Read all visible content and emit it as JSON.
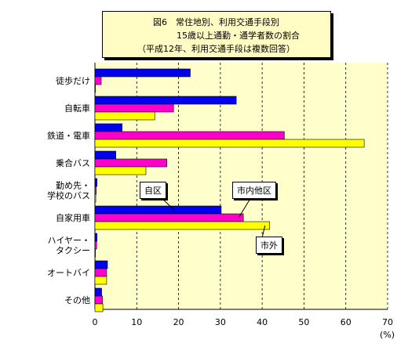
{
  "title_lines": [
    "図6　常住地別、利用交通手段別",
    "　　　　15歳以上通勤・通学者数の割合",
    "（平成12年、利用交通手段は複数回答）"
  ],
  "unit_label": "(%)",
  "callouts": {
    "jiku": "自区",
    "shinai": "市内他区",
    "shigai": "市外"
  },
  "colors": {
    "jiku": "#0000ee",
    "shinai": "#ff00cc",
    "shigai": "#ffff00",
    "plot_bg": "#ffffcc",
    "title_bg": "#fffcc4"
  },
  "chart_data": {
    "type": "bar",
    "orientation": "horizontal",
    "categories": [
      "徒歩だけ",
      "自転車",
      "鉄道・電車",
      "乗合バス",
      "勤め先・学校のバス",
      "自家用車",
      "ハイヤー・タクシー",
      "オートバイ",
      "その他"
    ],
    "category_labels": [
      [
        "徒歩だけ"
      ],
      [
        "自転車"
      ],
      [
        "鉄道・電車"
      ],
      [
        "乗合バス"
      ],
      [
        "勤め先・",
        "学校のバス"
      ],
      [
        "自家用車"
      ],
      [
        "ハイヤー・",
        "タクシー"
      ],
      [
        "オートバイ"
      ],
      [
        "その他"
      ]
    ],
    "series": [
      {
        "name": "自区",
        "values": [
          22.8,
          33.8,
          6.5,
          5.0,
          0.5,
          30.2,
          0.5,
          3.0,
          1.6
        ]
      },
      {
        "name": "市内他区",
        "values": [
          1.5,
          18.8,
          45.3,
          17.2,
          0.3,
          35.5,
          0.4,
          2.8,
          1.8
        ]
      },
      {
        "name": "市外",
        "values": [
          0.0,
          14.3,
          64.4,
          12.2,
          0.2,
          41.8,
          0.1,
          2.8,
          1.9
        ]
      }
    ],
    "xlim": [
      0,
      70
    ],
    "xticks": [
      0,
      10,
      20,
      30,
      40,
      50,
      60,
      70
    ],
    "grid": "vertical dashed"
  }
}
